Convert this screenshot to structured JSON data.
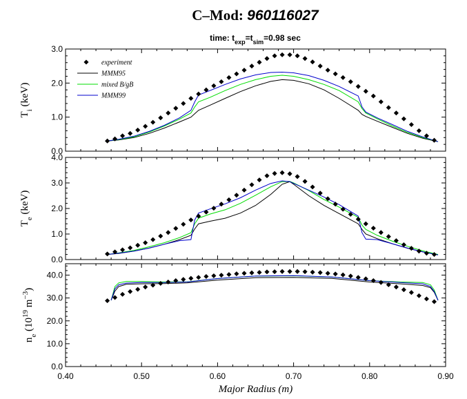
{
  "title": {
    "main": "C–Mod: ",
    "shot": "960116027",
    "subtitle_parts": [
      "time: t",
      "exp",
      "=t",
      "sim",
      "=0.98 sec"
    ]
  },
  "colors": {
    "experiment": "#000000",
    "MMM95": "#000000",
    "mixed": "#00dd00",
    "MMM99": "#0000cc"
  },
  "chart_data": [
    {
      "type": "line",
      "panel": "Ti",
      "ylabel_parts": [
        "T",
        "i",
        " (keV)"
      ],
      "ylim": [
        0,
        3.0
      ],
      "yticks": [
        "0.0",
        "1.0",
        "2.0",
        "3.0"
      ],
      "xlim": [
        0.4,
        0.9
      ],
      "legend": [
        "experiment",
        "MMM95",
        "mixed B/gB",
        "MMM99"
      ],
      "legend_position": "top-left",
      "experiment": {
        "x": [
          0.455,
          0.465,
          0.475,
          0.485,
          0.495,
          0.505,
          0.515,
          0.525,
          0.535,
          0.545,
          0.555,
          0.565,
          0.575,
          0.585,
          0.595,
          0.605,
          0.615,
          0.625,
          0.635,
          0.645,
          0.655,
          0.665,
          0.675,
          0.685,
          0.695,
          0.705,
          0.715,
          0.725,
          0.735,
          0.745,
          0.755,
          0.765,
          0.775,
          0.785,
          0.795,
          0.805,
          0.815,
          0.825,
          0.835,
          0.845,
          0.855,
          0.865,
          0.875,
          0.885
        ],
        "y": [
          0.3,
          0.36,
          0.45,
          0.52,
          0.62,
          0.73,
          0.85,
          0.98,
          1.12,
          1.26,
          1.4,
          1.55,
          1.68,
          1.8,
          1.92,
          2.04,
          2.16,
          2.27,
          2.38,
          2.5,
          2.61,
          2.72,
          2.8,
          2.83,
          2.83,
          2.8,
          2.72,
          2.62,
          2.5,
          2.38,
          2.27,
          2.16,
          2.04,
          1.9,
          1.76,
          1.62,
          1.45,
          1.28,
          1.12,
          0.95,
          0.78,
          0.6,
          0.45,
          0.32
        ]
      },
      "series": [
        {
          "name": "MMM95",
          "x": [
            0.455,
            0.47,
            0.49,
            0.51,
            0.53,
            0.55,
            0.565,
            0.57,
            0.575,
            0.59,
            0.61,
            0.63,
            0.65,
            0.67,
            0.685,
            0.7,
            0.72,
            0.74,
            0.76,
            0.785,
            0.79,
            0.795,
            0.81,
            0.83,
            0.85,
            0.87,
            0.89
          ],
          "y": [
            0.3,
            0.33,
            0.4,
            0.52,
            0.68,
            0.86,
            1.0,
            1.1,
            1.2,
            1.35,
            1.55,
            1.75,
            1.92,
            2.05,
            2.1,
            2.08,
            1.98,
            1.8,
            1.55,
            1.2,
            1.08,
            1.02,
            0.88,
            0.7,
            0.52,
            0.38,
            0.28
          ]
        },
        {
          "name": "mixed B/gB",
          "x": [
            0.455,
            0.47,
            0.49,
            0.51,
            0.53,
            0.55,
            0.565,
            0.57,
            0.575,
            0.59,
            0.61,
            0.63,
            0.65,
            0.67,
            0.685,
            0.7,
            0.72,
            0.74,
            0.76,
            0.785,
            0.79,
            0.795,
            0.81,
            0.83,
            0.85,
            0.87,
            0.89
          ],
          "y": [
            0.3,
            0.34,
            0.42,
            0.56,
            0.74,
            0.94,
            1.12,
            1.3,
            1.45,
            1.58,
            1.78,
            1.96,
            2.1,
            2.2,
            2.23,
            2.2,
            2.1,
            1.96,
            1.78,
            1.45,
            1.25,
            1.12,
            0.95,
            0.74,
            0.55,
            0.4,
            0.28
          ]
        },
        {
          "name": "MMM99",
          "x": [
            0.455,
            0.47,
            0.49,
            0.51,
            0.53,
            0.55,
            0.565,
            0.57,
            0.575,
            0.59,
            0.61,
            0.63,
            0.65,
            0.67,
            0.685,
            0.7,
            0.72,
            0.74,
            0.76,
            0.785,
            0.79,
            0.795,
            0.81,
            0.83,
            0.85,
            0.87,
            0.89
          ],
          "y": [
            0.3,
            0.35,
            0.44,
            0.58,
            0.76,
            0.98,
            1.2,
            1.45,
            1.65,
            1.78,
            1.96,
            2.12,
            2.24,
            2.31,
            2.32,
            2.3,
            2.22,
            2.08,
            1.9,
            1.62,
            1.3,
            1.15,
            0.98,
            0.78,
            0.58,
            0.42,
            0.28
          ]
        }
      ]
    },
    {
      "type": "line",
      "panel": "Te",
      "ylabel_parts": [
        "T",
        "e",
        " (keV)"
      ],
      "ylim": [
        0,
        4.0
      ],
      "yticks": [
        "0.0",
        "1.0",
        "2.0",
        "3.0",
        "4.0"
      ],
      "xlim": [
        0.4,
        0.9
      ],
      "experiment": {
        "x": [
          0.455,
          0.465,
          0.475,
          0.485,
          0.495,
          0.505,
          0.515,
          0.525,
          0.535,
          0.545,
          0.555,
          0.565,
          0.575,
          0.585,
          0.595,
          0.605,
          0.615,
          0.625,
          0.635,
          0.645,
          0.655,
          0.665,
          0.675,
          0.685,
          0.695,
          0.705,
          0.715,
          0.725,
          0.735,
          0.745,
          0.755,
          0.765,
          0.775,
          0.785,
          0.795,
          0.805,
          0.815,
          0.825,
          0.835,
          0.845,
          0.855,
          0.865,
          0.875,
          0.885
        ],
        "y": [
          0.22,
          0.3,
          0.38,
          0.46,
          0.56,
          0.66,
          0.78,
          0.92,
          1.06,
          1.22,
          1.38,
          1.55,
          1.7,
          1.86,
          2.01,
          2.17,
          2.34,
          2.52,
          2.72,
          2.93,
          3.12,
          3.28,
          3.37,
          3.4,
          3.36,
          3.25,
          3.06,
          2.84,
          2.6,
          2.38,
          2.17,
          1.97,
          1.77,
          1.58,
          1.4,
          1.23,
          1.06,
          0.9,
          0.74,
          0.58,
          0.44,
          0.33,
          0.25,
          0.2
        ]
      },
      "series": [
        {
          "name": "MMM95",
          "x": [
            0.455,
            0.47,
            0.49,
            0.51,
            0.53,
            0.55,
            0.565,
            0.57,
            0.575,
            0.59,
            0.61,
            0.63,
            0.65,
            0.67,
            0.685,
            0.695,
            0.7,
            0.72,
            0.74,
            0.76,
            0.785,
            0.79,
            0.795,
            0.81,
            0.83,
            0.85,
            0.87,
            0.89
          ],
          "y": [
            0.2,
            0.24,
            0.33,
            0.45,
            0.6,
            0.78,
            0.95,
            1.2,
            1.4,
            1.5,
            1.62,
            1.82,
            2.12,
            2.55,
            2.95,
            3.05,
            2.95,
            2.5,
            2.12,
            1.8,
            1.4,
            1.18,
            1.0,
            0.82,
            0.62,
            0.44,
            0.3,
            0.18
          ]
        },
        {
          "name": "mixed B/gB",
          "x": [
            0.455,
            0.47,
            0.49,
            0.51,
            0.53,
            0.55,
            0.565,
            0.57,
            0.575,
            0.59,
            0.61,
            0.63,
            0.65,
            0.67,
            0.685,
            0.695,
            0.7,
            0.72,
            0.74,
            0.76,
            0.785,
            0.79,
            0.795,
            0.81,
            0.83,
            0.85,
            0.87,
            0.89
          ],
          "y": [
            0.2,
            0.26,
            0.36,
            0.5,
            0.66,
            0.86,
            1.05,
            1.4,
            1.62,
            1.78,
            1.95,
            2.2,
            2.52,
            2.85,
            3.05,
            3.06,
            3.0,
            2.7,
            2.35,
            2.05,
            1.65,
            1.35,
            1.18,
            0.95,
            0.72,
            0.52,
            0.34,
            0.2
          ]
        },
        {
          "name": "MMM99",
          "x": [
            0.455,
            0.47,
            0.49,
            0.51,
            0.53,
            0.55,
            0.565,
            0.57,
            0.575,
            0.59,
            0.61,
            0.63,
            0.65,
            0.67,
            0.685,
            0.695,
            0.7,
            0.72,
            0.74,
            0.76,
            0.785,
            0.79,
            0.795,
            0.81,
            0.83,
            0.85,
            0.87,
            0.89
          ],
          "y": [
            0.2,
            0.25,
            0.33,
            0.45,
            0.6,
            0.74,
            0.78,
            1.55,
            1.82,
            1.98,
            2.18,
            2.42,
            2.72,
            2.98,
            3.08,
            3.05,
            2.98,
            2.72,
            2.45,
            2.15,
            1.7,
            1.05,
            0.8,
            0.78,
            0.62,
            0.45,
            0.3,
            0.18
          ]
        }
      ]
    },
    {
      "type": "line",
      "panel": "ne",
      "ylabel_parts": [
        "n",
        "e",
        " (10",
        "19",
        " m",
        "−3",
        ")"
      ],
      "ylim": [
        0,
        45
      ],
      "yticks": [
        "0.0",
        "10.0",
        "20.0",
        "30.0",
        "40.0"
      ],
      "xlim": [
        0.4,
        0.9
      ],
      "xticks": [
        "0.40",
        "0.50",
        "0.60",
        "0.70",
        "0.80",
        "0.90"
      ],
      "xlabel": "Major Radius (m)",
      "experiment": {
        "x": [
          0.455,
          0.465,
          0.475,
          0.485,
          0.495,
          0.505,
          0.515,
          0.525,
          0.535,
          0.545,
          0.555,
          0.565,
          0.575,
          0.585,
          0.595,
          0.605,
          0.615,
          0.625,
          0.635,
          0.645,
          0.655,
          0.665,
          0.675,
          0.685,
          0.695,
          0.705,
          0.715,
          0.725,
          0.735,
          0.745,
          0.755,
          0.765,
          0.775,
          0.785,
          0.795,
          0.805,
          0.815,
          0.825,
          0.835,
          0.845,
          0.855,
          0.865,
          0.875,
          0.885
        ],
        "y": [
          28.8,
          30.2,
          31.6,
          32.8,
          33.8,
          34.8,
          35.6,
          36.4,
          37.0,
          37.6,
          38.1,
          38.6,
          39.0,
          39.4,
          39.7,
          40.0,
          40.3,
          40.6,
          40.8,
          41.0,
          41.2,
          41.4,
          41.5,
          41.6,
          41.6,
          41.6,
          41.5,
          41.3,
          41.1,
          40.8,
          40.5,
          40.1,
          39.6,
          39.0,
          38.4,
          37.6,
          36.8,
          35.8,
          34.8,
          33.6,
          32.4,
          31.0,
          29.6,
          28.4
        ]
      },
      "series": [
        {
          "name": "MMM95",
          "x": [
            0.46,
            0.465,
            0.47,
            0.48,
            0.5,
            0.53,
            0.56,
            0.6,
            0.65,
            0.7,
            0.75,
            0.8,
            0.84,
            0.87,
            0.88,
            0.885,
            0.89
          ],
          "y": [
            29.0,
            33.0,
            35.0,
            36.0,
            36.2,
            36.3,
            36.6,
            37.8,
            38.9,
            39.0,
            38.6,
            37.0,
            36.2,
            35.5,
            34.5,
            32.5,
            29.0
          ]
        },
        {
          "name": "mixed B/gB",
          "x": [
            0.46,
            0.465,
            0.47,
            0.48,
            0.5,
            0.53,
            0.56,
            0.6,
            0.65,
            0.7,
            0.75,
            0.8,
            0.84,
            0.87,
            0.88,
            0.885,
            0.89
          ],
          "y": [
            29.0,
            35.0,
            36.6,
            37.2,
            37.2,
            37.0,
            37.1,
            38.5,
            39.6,
            39.7,
            39.2,
            37.6,
            37.0,
            36.8,
            35.8,
            33.5,
            29.0
          ]
        },
        {
          "name": "MMM99",
          "x": [
            0.46,
            0.465,
            0.47,
            0.48,
            0.5,
            0.53,
            0.56,
            0.6,
            0.65,
            0.7,
            0.75,
            0.8,
            0.84,
            0.87,
            0.88,
            0.885,
            0.89
          ],
          "y": [
            29.0,
            34.0,
            35.8,
            36.5,
            36.8,
            36.8,
            37.0,
            38.5,
            39.6,
            39.8,
            39.2,
            37.6,
            36.8,
            36.2,
            35.0,
            32.8,
            29.0
          ]
        }
      ]
    }
  ]
}
